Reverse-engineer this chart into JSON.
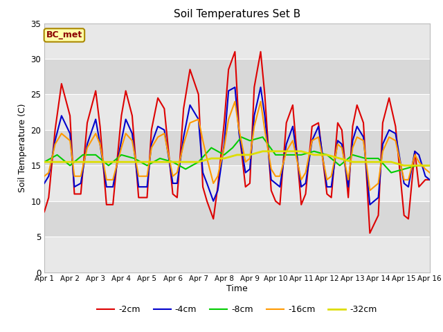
{
  "title": "Soil Temperatures Set B",
  "xlabel": "Time",
  "ylabel": "Soil Temperature (C)",
  "annotation": "BC_met",
  "xlim": [
    0,
    15
  ],
  "ylim": [
    0,
    35
  ],
  "yticks": [
    0,
    5,
    10,
    15,
    20,
    25,
    30,
    35
  ],
  "xtick_labels": [
    "Apr 1",
    "Apr 2",
    "Apr 3",
    "Apr 4",
    "Apr 5",
    "Apr 6",
    "Apr 7",
    "Apr 8",
    "Apr 9",
    "Apr 10",
    "Apr 11",
    "Apr 12",
    "Apr 13",
    "Apr 14",
    "Apr 15",
    "Apr 16"
  ],
  "bg_light": "#f0f0f0",
  "bg_dark": "#e0e0e0",
  "series": {
    "-2cm": {
      "color": "#dd0000",
      "lw": 1.5,
      "data_x": [
        0,
        0.17,
        0.42,
        0.67,
        1.0,
        1.17,
        1.42,
        1.67,
        2.0,
        2.17,
        2.42,
        2.67,
        3.0,
        3.17,
        3.42,
        3.67,
        4.0,
        4.17,
        4.42,
        4.67,
        5.0,
        5.17,
        5.42,
        5.67,
        6.0,
        6.17,
        6.33,
        6.58,
        6.75,
        7.0,
        7.17,
        7.42,
        7.58,
        7.83,
        8.0,
        8.17,
        8.42,
        8.58,
        8.83,
        9.0,
        9.17,
        9.42,
        9.67,
        10.0,
        10.17,
        10.42,
        10.67,
        11.0,
        11.17,
        11.42,
        11.58,
        11.83,
        12.0,
        12.17,
        12.42,
        12.67,
        13.0,
        13.17,
        13.42,
        13.67,
        14.0,
        14.17,
        14.42,
        14.58,
        14.83,
        15.0
      ],
      "data_y": [
        8.5,
        10.5,
        20.0,
        26.5,
        22.0,
        11.0,
        11.0,
        21.0,
        25.5,
        20.5,
        9.5,
        9.5,
        22.0,
        25.5,
        22.0,
        10.5,
        10.5,
        20.0,
        24.5,
        23.0,
        11.0,
        10.5,
        23.0,
        28.5,
        25.0,
        12.0,
        10.0,
        7.5,
        12.0,
        21.0,
        28.5,
        31.0,
        20.0,
        12.0,
        12.5,
        26.0,
        31.0,
        25.0,
        11.5,
        10.0,
        9.5,
        21.0,
        23.5,
        9.5,
        11.0,
        20.5,
        21.0,
        11.0,
        10.5,
        21.0,
        20.0,
        10.5,
        20.5,
        23.5,
        21.0,
        5.5,
        8.0,
        21.0,
        24.5,
        20.5,
        8.0,
        7.5,
        17.0,
        12.0,
        13.0,
        13.0
      ]
    },
    "-4cm": {
      "color": "#0000cc",
      "lw": 1.5,
      "data_x": [
        0,
        0.17,
        0.42,
        0.67,
        1.0,
        1.17,
        1.42,
        1.67,
        2.0,
        2.17,
        2.42,
        2.67,
        3.0,
        3.17,
        3.42,
        3.67,
        4.0,
        4.17,
        4.42,
        4.67,
        5.0,
        5.17,
        5.42,
        5.67,
        6.0,
        6.17,
        6.33,
        6.58,
        6.75,
        7.0,
        7.17,
        7.42,
        7.58,
        7.83,
        8.0,
        8.17,
        8.42,
        8.58,
        8.83,
        9.0,
        9.17,
        9.42,
        9.67,
        10.0,
        10.17,
        10.42,
        10.67,
        11.0,
        11.17,
        11.42,
        11.58,
        11.83,
        12.0,
        12.17,
        12.42,
        12.67,
        13.0,
        13.17,
        13.42,
        13.67,
        14.0,
        14.17,
        14.42,
        14.58,
        14.83,
        15.0
      ],
      "data_y": [
        12.5,
        13.5,
        18.5,
        22.0,
        19.5,
        12.0,
        12.5,
        18.0,
        21.5,
        18.0,
        12.0,
        12.0,
        18.5,
        21.5,
        19.5,
        12.0,
        12.0,
        18.0,
        20.5,
        20.0,
        12.5,
        12.5,
        19.0,
        23.5,
        21.5,
        14.0,
        12.5,
        10.0,
        11.5,
        18.0,
        25.5,
        26.0,
        19.5,
        14.0,
        14.5,
        22.0,
        26.0,
        22.0,
        13.0,
        12.5,
        12.0,
        18.0,
        20.5,
        12.0,
        12.5,
        18.5,
        20.5,
        12.0,
        12.0,
        18.5,
        18.0,
        12.0,
        18.5,
        20.5,
        19.0,
        9.5,
        10.5,
        18.0,
        20.0,
        19.5,
        12.5,
        12.0,
        17.0,
        16.5,
        13.5,
        13.0
      ]
    },
    "-8cm": {
      "color": "#00cc00",
      "lw": 1.5,
      "data_x": [
        0,
        0.5,
        1.0,
        1.5,
        2.0,
        2.5,
        3.0,
        3.5,
        4.0,
        4.5,
        5.0,
        5.5,
        6.0,
        6.5,
        7.0,
        7.33,
        7.67,
        8.0,
        8.5,
        9.0,
        9.5,
        10.0,
        10.5,
        11.0,
        11.5,
        12.0,
        12.5,
        13.0,
        13.5,
        14.0,
        14.5,
        15.0
      ],
      "data_y": [
        15.5,
        16.5,
        15.0,
        16.5,
        16.5,
        15.0,
        16.5,
        16.0,
        15.0,
        16.0,
        15.5,
        14.5,
        15.5,
        17.5,
        16.5,
        17.5,
        19.0,
        18.5,
        19.0,
        16.5,
        16.5,
        16.5,
        17.0,
        16.5,
        15.0,
        16.5,
        16.0,
        16.0,
        14.0,
        14.5,
        15.0,
        15.0
      ]
    },
    "-16cm": {
      "color": "#ff9900",
      "lw": 1.5,
      "data_x": [
        0,
        0.17,
        0.42,
        0.67,
        1.0,
        1.17,
        1.42,
        1.67,
        2.0,
        2.17,
        2.42,
        2.67,
        3.0,
        3.17,
        3.42,
        3.67,
        4.0,
        4.17,
        4.42,
        4.67,
        5.0,
        5.17,
        5.42,
        5.67,
        6.0,
        6.17,
        6.33,
        6.58,
        6.75,
        7.0,
        7.17,
        7.42,
        7.58,
        7.83,
        8.0,
        8.17,
        8.42,
        8.58,
        8.83,
        9.0,
        9.17,
        9.42,
        9.67,
        10.0,
        10.17,
        10.42,
        10.67,
        11.0,
        11.17,
        11.42,
        11.58,
        11.83,
        12.0,
        12.17,
        12.42,
        12.67,
        13.0,
        13.17,
        13.42,
        13.67,
        14.0,
        14.17,
        14.42,
        14.58,
        14.83,
        15.0
      ],
      "data_y": [
        13.5,
        14.0,
        18.0,
        19.5,
        18.5,
        13.5,
        13.5,
        17.5,
        19.5,
        18.0,
        13.0,
        13.0,
        17.5,
        19.5,
        18.5,
        13.5,
        13.5,
        17.5,
        19.0,
        19.5,
        13.5,
        14.0,
        18.0,
        21.0,
        21.5,
        18.5,
        16.0,
        12.5,
        13.5,
        17.5,
        21.5,
        24.0,
        20.0,
        15.5,
        16.0,
        20.5,
        24.0,
        20.0,
        14.5,
        13.5,
        13.5,
        17.0,
        18.5,
        13.0,
        14.0,
        18.5,
        19.0,
        13.0,
        13.5,
        18.0,
        17.5,
        13.0,
        17.5,
        19.0,
        18.5,
        11.5,
        12.5,
        17.0,
        19.0,
        18.5,
        13.0,
        13.0,
        16.5,
        15.5,
        14.5,
        14.0
      ]
    },
    "-32cm": {
      "color": "#dddd00",
      "lw": 2.0,
      "data_x": [
        0,
        0.5,
        1.0,
        1.5,
        2.0,
        2.5,
        3.0,
        3.5,
        4.0,
        4.5,
        5.0,
        5.5,
        6.0,
        6.5,
        7.0,
        7.5,
        8.0,
        8.5,
        9.0,
        9.5,
        10.0,
        10.5,
        11.0,
        11.5,
        12.0,
        12.5,
        13.0,
        13.5,
        14.0,
        14.5,
        15.0
      ],
      "data_y": [
        15.5,
        15.5,
        15.5,
        15.5,
        15.5,
        15.5,
        15.5,
        15.5,
        15.5,
        15.5,
        15.5,
        15.5,
        15.5,
        16.0,
        16.0,
        16.5,
        16.5,
        17.0,
        17.0,
        17.0,
        17.0,
        16.5,
        16.5,
        16.0,
        15.5,
        15.5,
        15.5,
        15.5,
        15.0,
        15.0,
        15.0
      ]
    }
  },
  "legend_order": [
    "-2cm",
    "-4cm",
    "-8cm",
    "-16cm",
    "-32cm"
  ],
  "legend_colors": [
    "#dd0000",
    "#0000cc",
    "#00cc00",
    "#ff9900",
    "#dddd00"
  ],
  "band_colors": [
    "#e8e8e8",
    "#d8d8d8"
  ]
}
